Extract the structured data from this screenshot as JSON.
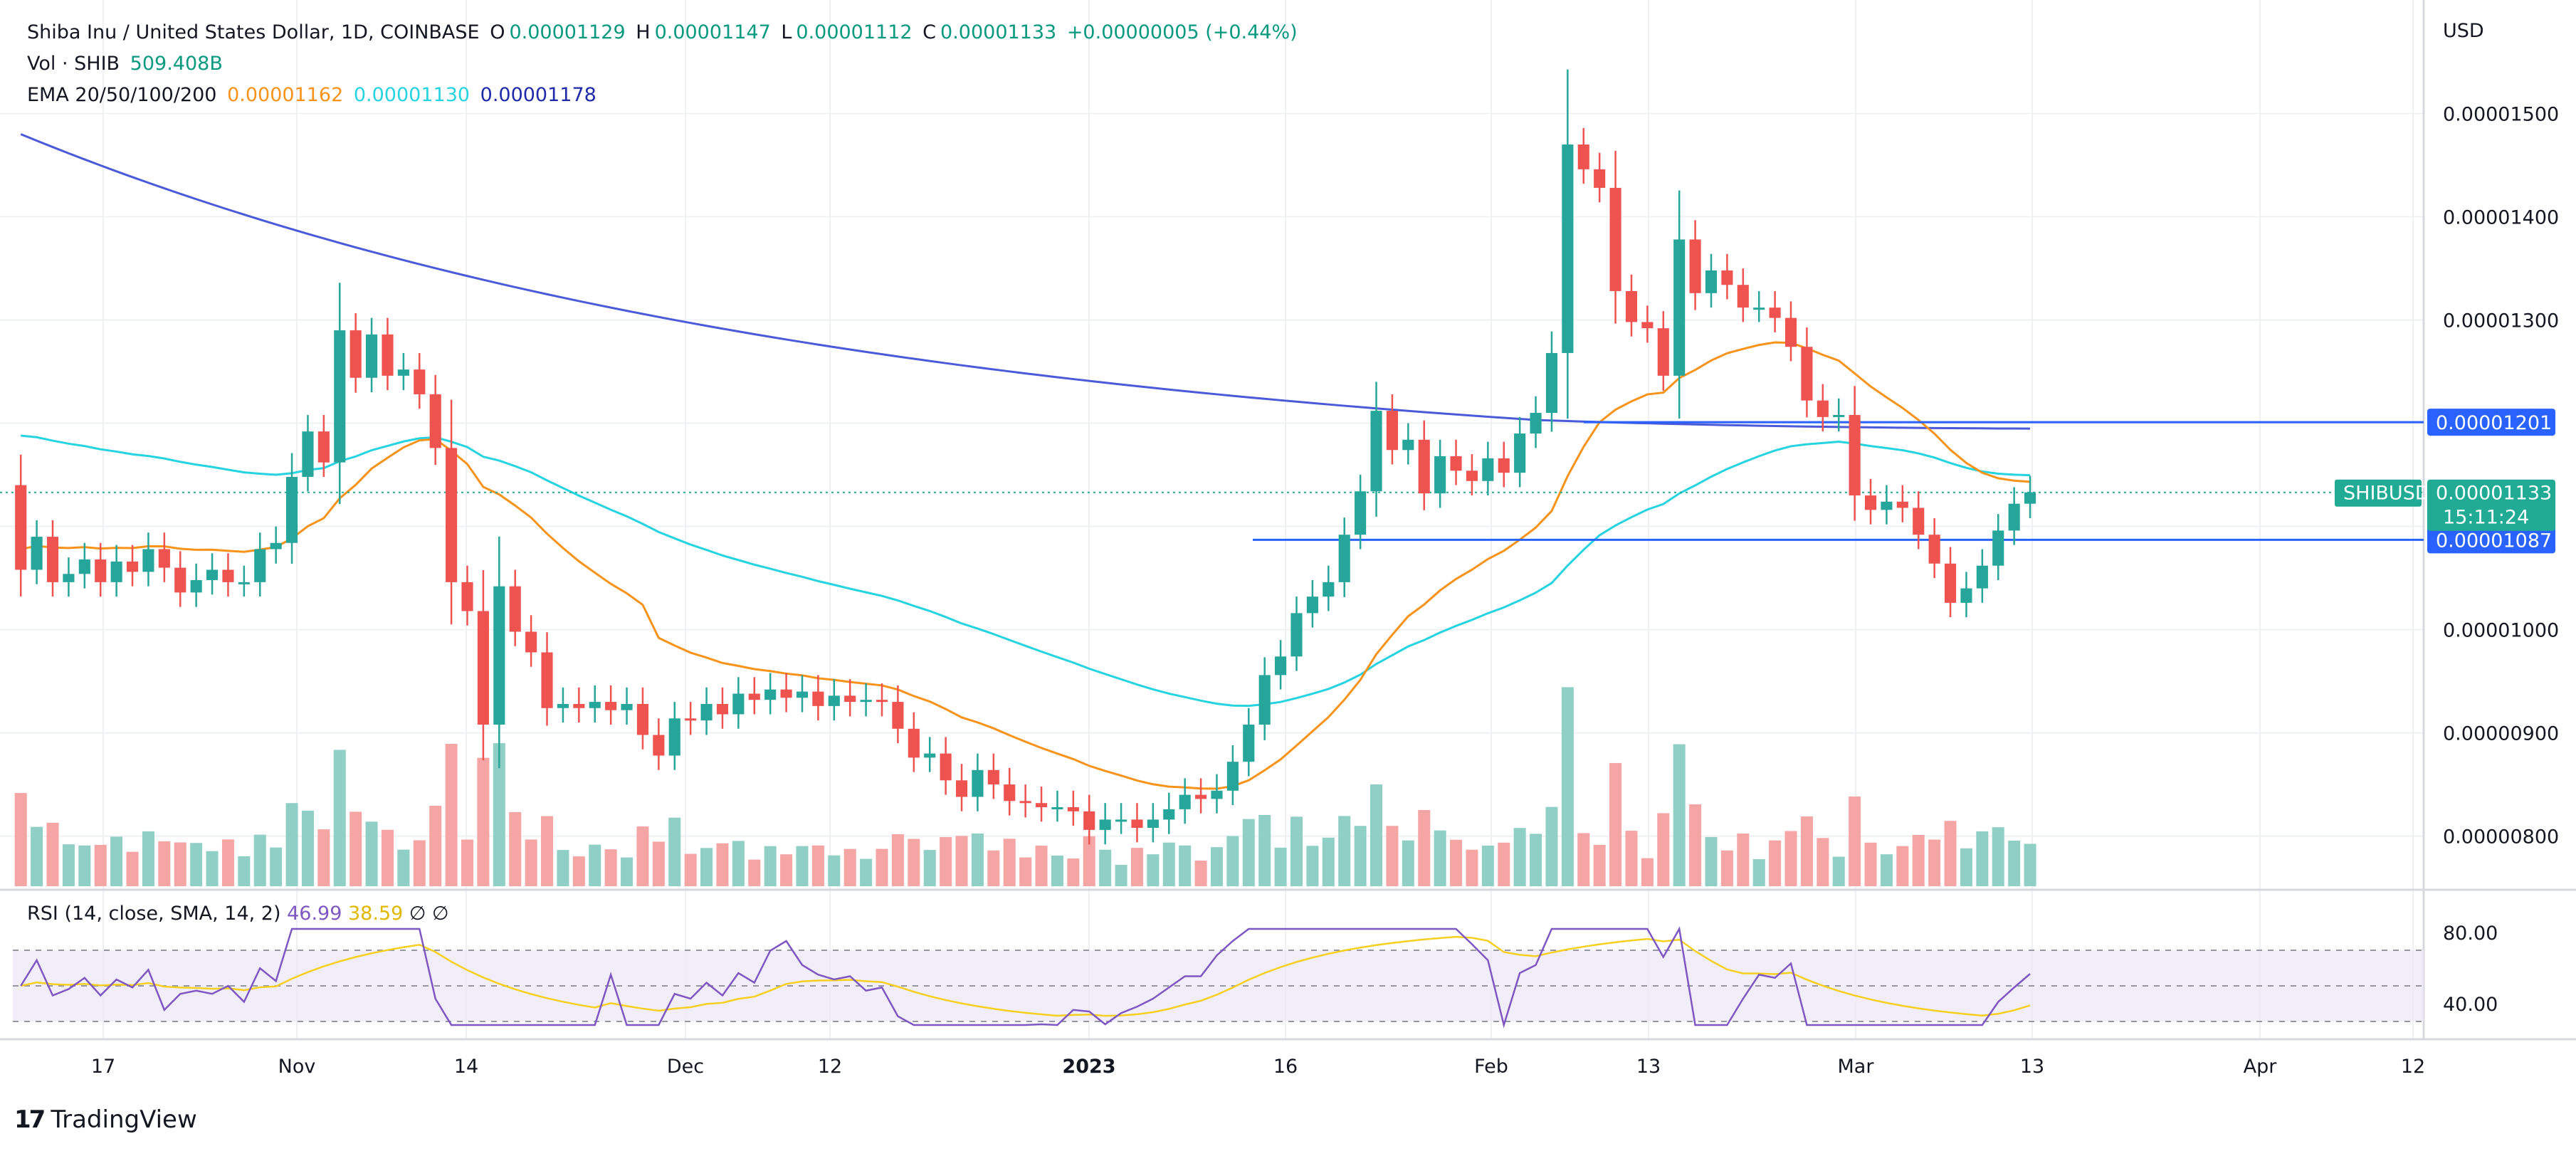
{
  "header": {
    "symbol_title": "Shiba Inu / United States Dollar, 1D, COINBASE",
    "ohlc": [
      {
        "k": "O",
        "v": "0.00001129"
      },
      {
        "k": "H",
        "v": "0.00001147"
      },
      {
        "k": "L",
        "v": "0.00001112"
      },
      {
        "k": "C",
        "v": "0.00001133"
      }
    ],
    "change": "+0.00000005 (+0.44%)",
    "volume_label": "Vol · SHIB",
    "volume_value": "509.408B",
    "ema_label": "EMA 20/50/100/200",
    "ema_values": [
      {
        "v": "0.00001162",
        "color": "#f7931a"
      },
      {
        "v": "0.00001130",
        "color": "#26d3e0"
      },
      {
        "v": "0.00001178",
        "color": "#1e2aa8"
      }
    ]
  },
  "rsi_legend": {
    "label": "RSI (14, close, SMA, 14, 2)",
    "rsi": "46.99",
    "sma": "38.59",
    "extra": "∅  ∅"
  },
  "price_axis": {
    "currency": "USD",
    "ticks": [
      "0.00001500",
      "0.00001400",
      "0.00001300",
      "0.00001000",
      "0.00000900",
      "0.00000800"
    ],
    "highlight_labels": [
      {
        "text": "0.00001201",
        "color": "#2962ff"
      },
      {
        "text": "0.00001087",
        "color": "#2962ff"
      }
    ],
    "symbol_tag": "SHIBUSD",
    "current_price": "0.00001133",
    "countdown": "15:11:24",
    "current_color": "#22ab94"
  },
  "rsi_axis": {
    "ticks": [
      "80.00",
      "40.00"
    ]
  },
  "time_axis": {
    "labels": [
      "17",
      "Nov",
      "14",
      "Dec",
      "12",
      "2023",
      "16",
      "Feb",
      "13",
      "Mar",
      "13",
      "Apr",
      "12"
    ]
  },
  "colors": {
    "up": "#26a69a",
    "down": "#ef5350",
    "vol_up": "#8fcfc6",
    "vol_down": "#f5a5a4",
    "ema20": "#f7931a",
    "ema50": "#26d3e0",
    "ema200": "#4a5ad8",
    "rsi": "#7e57c2",
    "rsi_sma": "#f5d020",
    "hline": "#2962ff"
  },
  "brand": "TradingView",
  "chart_data": {
    "type": "candlestick",
    "title": "Shiba Inu / United States Dollar, 1D, COINBASE",
    "ylabel": "USD",
    "ylim": [
      7.48e-06,
      1.61e-05
    ],
    "x_start_date": "2022-10-06",
    "horizontal_levels": [
      1.201e-05,
      1.087e-05
    ],
    "candles": [
      [
        1.14e-05,
        1.058e-05,
        1.09e-05,
        1.046e-05,
        1.054e-05,
        1.068e-05,
        1.046e-05,
        1.066e-05,
        1.056e-05,
        1.078e-05,
        1.06e-05,
        1.036e-05,
        1.048e-05,
        1.058e-05,
        1.046e-05,
        1.046e-05,
        1.078e-05,
        1.084e-05,
        1.148e-05,
        1.192e-05,
        1.162e-05,
        1.29e-05,
        1.244e-05,
        1.286e-05,
        1.246e-05,
        1.252e-05,
        1.228e-05,
        1.176e-05,
        1.046e-05,
        1.018e-05,
        9.08e-06,
        1.042e-05,
        9.98e-06,
        9.78e-06,
        9.24e-06,
        9.28e-06,
        9.24e-06,
        9.3e-06,
        9.22e-06,
        9.28e-06,
        8.98e-06,
        8.78e-06,
        9.14e-06,
        9.12e-06,
        9.28e-06,
        9.18e-06,
        9.38e-06,
        9.32e-06,
        9.42e-06,
        9.34e-06,
        9.4e-06,
        9.26e-06,
        9.36e-06,
        9.3e-06,
        9.32e-06,
        9.3e-06,
        9.04e-06,
        8.76e-06,
        8.8e-06,
        8.54e-06,
        8.38e-06,
        8.64e-06,
        8.5e-06,
        8.34e-06,
        8.32e-06,
        8.28e-06,
        8.28e-06,
        8.24e-06,
        8.06e-06,
        8.16e-06,
        8.16e-06,
        8.08e-06,
        8.16e-06,
        8.26e-06,
        8.4e-06,
        8.36e-06,
        8.44e-06,
        8.72e-06,
        9.08e-06,
        9.56e-06,
        9.74e-06,
        1.016e-05,
        1.032e-05,
        1.046e-05,
        1.092e-05,
        1.134e-05,
        1.212e-05,
        1.174e-05,
        1.184e-05,
        1.132e-05,
        1.168e-05,
        1.154e-05,
        1.144e-05,
        1.166e-05,
        1.152e-05,
        1.19e-05,
        1.21e-05,
        1.268e-05,
        1.47e-05,
        1.446e-05,
        1.428e-05,
        1.328e-05,
        1.298e-05,
        1.292e-05,
        1.246e-05,
        1.378e-05,
        1.326e-05,
        1.348e-05,
        1.334e-05,
        1.312e-05,
        1.312e-05,
        1.302e-05,
        1.274e-05,
        1.222e-05,
        1.206e-05,
        1.208e-05,
        1.13e-05,
        1.116e-05,
        1.124e-05,
        1.118e-05,
        1.092e-05,
        1.064e-05,
        1.026e-05,
        1.04e-05,
        1.062e-05,
        1.096e-05,
        1.122e-05
      ],
      [
        1.058e-05,
        1.09e-05,
        1.046e-05,
        1.054e-05,
        1.068e-05,
        1.046e-05,
        1.066e-05,
        1.056e-05,
        1.078e-05,
        1.06e-05,
        1.036e-05,
        1.048e-05,
        1.058e-05,
        1.046e-05,
        1.046e-05,
        1.078e-05,
        1.084e-05,
        1.148e-05,
        1.192e-05,
        1.162e-05,
        1.29e-05,
        1.244e-05,
        1.286e-05,
        1.246e-05,
        1.252e-05,
        1.228e-05,
        1.176e-05,
        1.046e-05,
        1.018e-05,
        9.08e-06,
        1.042e-05,
        9.98e-06,
        9.78e-06,
        9.24e-06,
        9.28e-06,
        9.24e-06,
        9.3e-06,
        9.22e-06,
        9.28e-06,
        8.98e-06,
        8.78e-06,
        9.14e-06,
        9.12e-06,
        9.28e-06,
        9.18e-06,
        9.38e-06,
        9.32e-06,
        9.42e-06,
        9.34e-06,
        9.4e-06,
        9.26e-06,
        9.36e-06,
        9.3e-06,
        9.32e-06,
        9.3e-06,
        9.04e-06,
        8.76e-06,
        8.8e-06,
        8.54e-06,
        8.38e-06,
        8.64e-06,
        8.5e-06,
        8.34e-06,
        8.32e-06,
        8.28e-06,
        8.28e-06,
        8.24e-06,
        8.06e-06,
        8.16e-06,
        8.16e-06,
        8.08e-06,
        8.16e-06,
        8.26e-06,
        8.4e-06,
        8.36e-06,
        8.44e-06,
        8.72e-06,
        9.08e-06,
        9.56e-06,
        9.74e-06,
        1.016e-05,
        1.032e-05,
        1.046e-05,
        1.092e-05,
        1.134e-05,
        1.212e-05,
        1.174e-05,
        1.184e-05,
        1.132e-05,
        1.168e-05,
        1.154e-05,
        1.144e-05,
        1.166e-05,
        1.152e-05,
        1.19e-05,
        1.21e-05,
        1.268e-05,
        1.47e-05,
        1.446e-05,
        1.428e-05,
        1.328e-05,
        1.298e-05,
        1.292e-05,
        1.246e-05,
        1.378e-05,
        1.326e-05,
        1.348e-05,
        1.334e-05,
        1.312e-05,
        1.312e-05,
        1.302e-05,
        1.274e-05,
        1.222e-05,
        1.206e-05,
        1.208e-05,
        1.13e-05,
        1.116e-05,
        1.124e-05,
        1.118e-05,
        1.092e-05,
        1.064e-05,
        1.026e-05,
        1.04e-05,
        1.062e-05,
        1.096e-05,
        1.122e-05,
        1.133e-05
      ]
    ],
    "rsi_range": [
      20,
      100
    ],
    "rsi_bands": [
      70,
      50,
      30
    ],
    "rsi_ticks": [
      80,
      40
    ]
  }
}
